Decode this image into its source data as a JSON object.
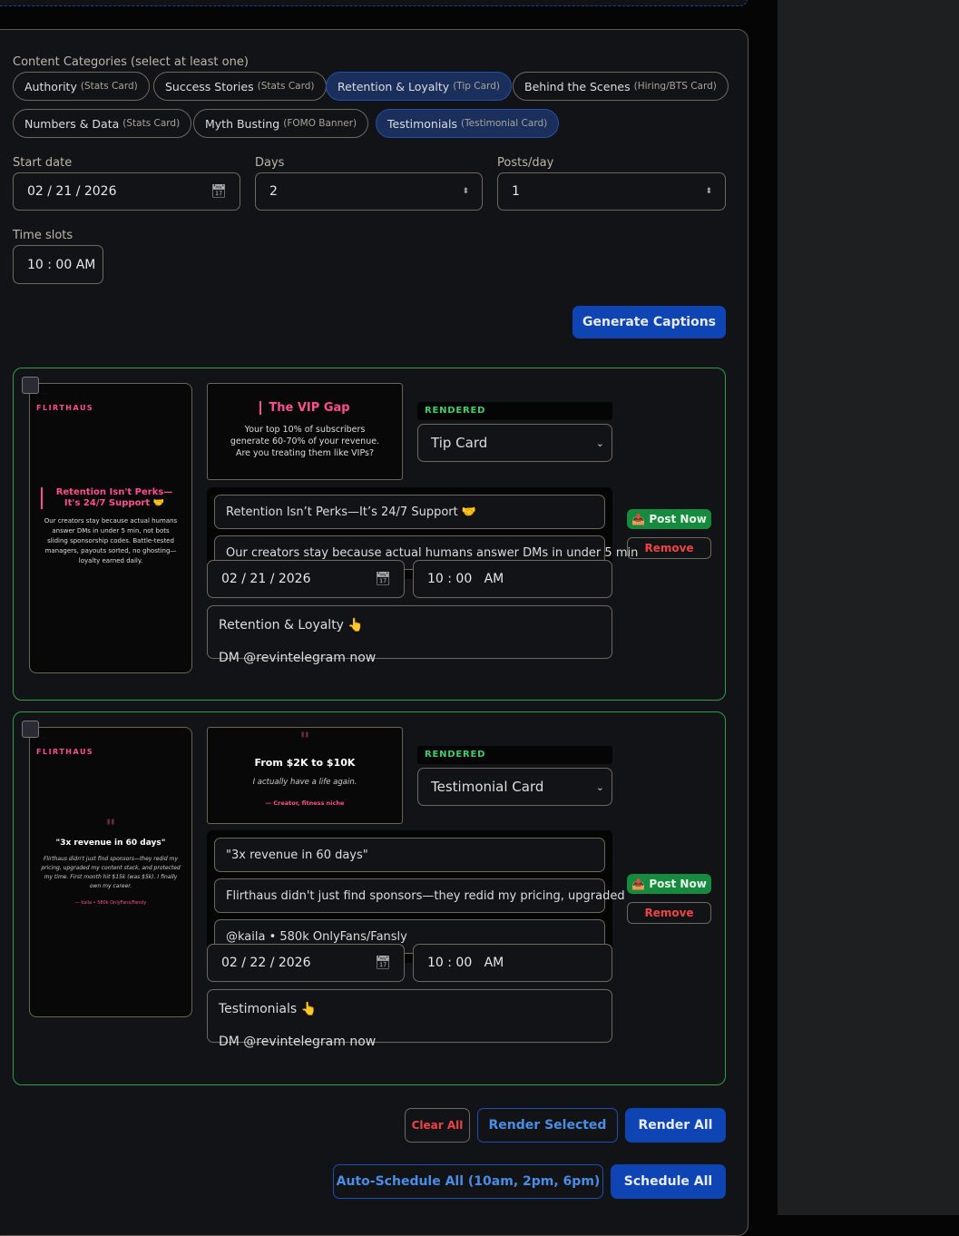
{
  "categories": {
    "label": "Content Categories (select at least one)",
    "chips": [
      {
        "name": "Authority",
        "type": "(Stats Card)",
        "selected": false
      },
      {
        "name": "Success Stories",
        "type": "(Stats Card)",
        "selected": false
      },
      {
        "name": "Retention & Loyalty",
        "type": "(Tip Card)",
        "selected": true
      },
      {
        "name": "Behind the Scenes",
        "type": "(Hiring/BTS Card)",
        "selected": false
      },
      {
        "name": "Numbers & Data",
        "type": "(Stats Card)",
        "selected": false
      },
      {
        "name": "Myth Busting",
        "type": "(FOMO Banner)",
        "selected": false
      },
      {
        "name": "Testimonials",
        "type": "(Testimonial Card)",
        "selected": true
      }
    ]
  },
  "form": {
    "start_label": "Start date",
    "start_value": "02 / 21 / 2026",
    "days_label": "Days",
    "days_value": "2",
    "ppd_label": "Posts/day",
    "ppd_value": "1",
    "slots_label": "Time slots",
    "slot_value": "10 : 00  AM"
  },
  "generate_label": "Generate Captions",
  "posts": [
    {
      "brand": "FLIRTHAUS",
      "preview_title": "Retention Isn't Perks—It's 24/7 Support 🤝",
      "preview_body": "Our creators stay because actual humans answer DMs in under 5 min, not bots sliding sponsorship codes. Battle-tested managers, payouts sorted, no ghosting—loyalty earned daily.",
      "thumb_title": "The VIP Gap",
      "thumb_body": "Your top 10% of subscribers generate 60-70% of your revenue. Are you treating them like VIPs?",
      "status": "RENDERED",
      "template": "Tip Card",
      "fields": [
        "Retention Isn’t Perks—It’s 24/7 Support 🤝",
        "Our creators stay because actual humans answer DMs in under 5 min"
      ],
      "date": "02 / 21 / 2026",
      "time": "10 : 00   AM",
      "caption_line1": "Retention & Loyalty 👆",
      "caption_line2": "DM @revintelegram now"
    },
    {
      "brand": "FLIRTHAUS",
      "preview_title": "\"3x revenue in 60 days\"",
      "preview_body": "Flirthaus didn't just find sponsors—they redid my pricing, upgraded my content stack, and protected my time. First month hit $15k (was $5k). I finally own my career.",
      "preview_author": "— kaila • 580k OnlyFans/Fansly",
      "thumb_title": "From $2K to $10K",
      "thumb_body": "I actually have a life again.",
      "thumb_author": "— Creator, fitness niche",
      "status": "RENDERED",
      "template": "Testimonial Card",
      "fields": [
        "\"3x revenue in 60 days\"",
        "Flirthaus didn't just find sponsors—they redid my pricing, upgraded",
        "@kaila • 580k OnlyFans/Fansly"
      ],
      "date": "02 / 22 / 2026",
      "time": "10 : 00   AM",
      "caption_line1": "Testimonials 👆",
      "caption_line2": "DM @revintelegram now"
    }
  ],
  "post_now_label": "📤 Post Now",
  "remove_label": "Remove",
  "actions": {
    "clear": "Clear All",
    "render_selected": "Render Selected",
    "render_all": "Render All",
    "auto_schedule": "Auto-Schedule All (10am, 2pm, 6pm)",
    "schedule_all": "Schedule All"
  },
  "colors": {
    "accent": "#0f44b5",
    "brand_pink": "#ff4f8f",
    "success": "#168a3e",
    "danger": "#ef4444"
  }
}
